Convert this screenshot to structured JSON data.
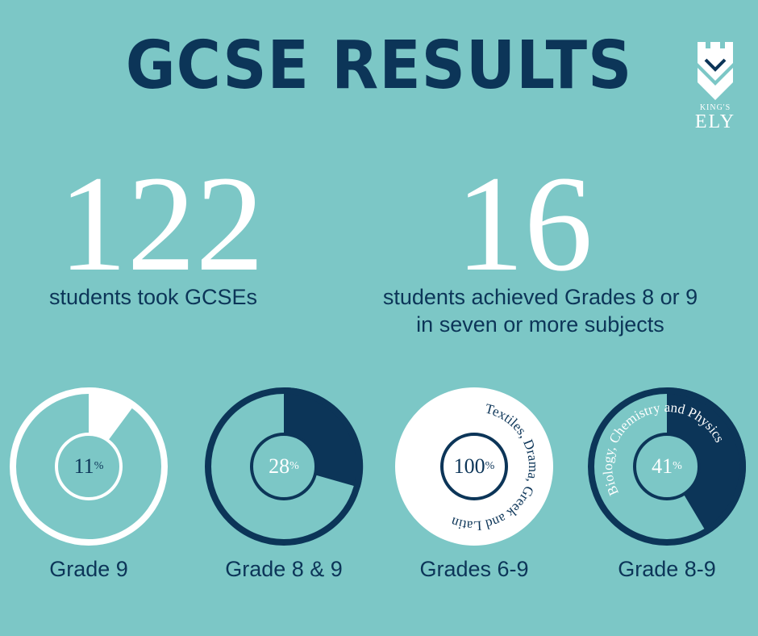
{
  "title": "GCSE RESULTS",
  "logo": {
    "small_text": "KING'S",
    "big_text": "ELY"
  },
  "stats": [
    {
      "number": "122",
      "text_line1": "students took GCSEs",
      "text_line2": ""
    },
    {
      "number": "16",
      "text_line1": "students achieved Grades 8 or 9",
      "text_line2": "in seven or more subjects"
    }
  ],
  "donuts": [
    {
      "percent": "11",
      "fraction": 0.11,
      "label": "Grade 9",
      "curved_text": ""
    },
    {
      "percent": "28",
      "fraction": 0.28,
      "label": "Grade 8 & 9",
      "curved_text": ""
    },
    {
      "percent": "100",
      "fraction": 1.0,
      "label": "Grades 6-9",
      "curved_text": "Textiles, Drama, Greek and Latin"
    },
    {
      "percent": "41",
      "fraction": 0.41,
      "label": "Grade 8-9",
      "curved_text": "Biology, Chemistry and Physics"
    }
  ],
  "percent_sign": "%",
  "colors": {
    "background": "#7cc7c6",
    "navy": "#0c3558",
    "white": "#ffffff"
  }
}
